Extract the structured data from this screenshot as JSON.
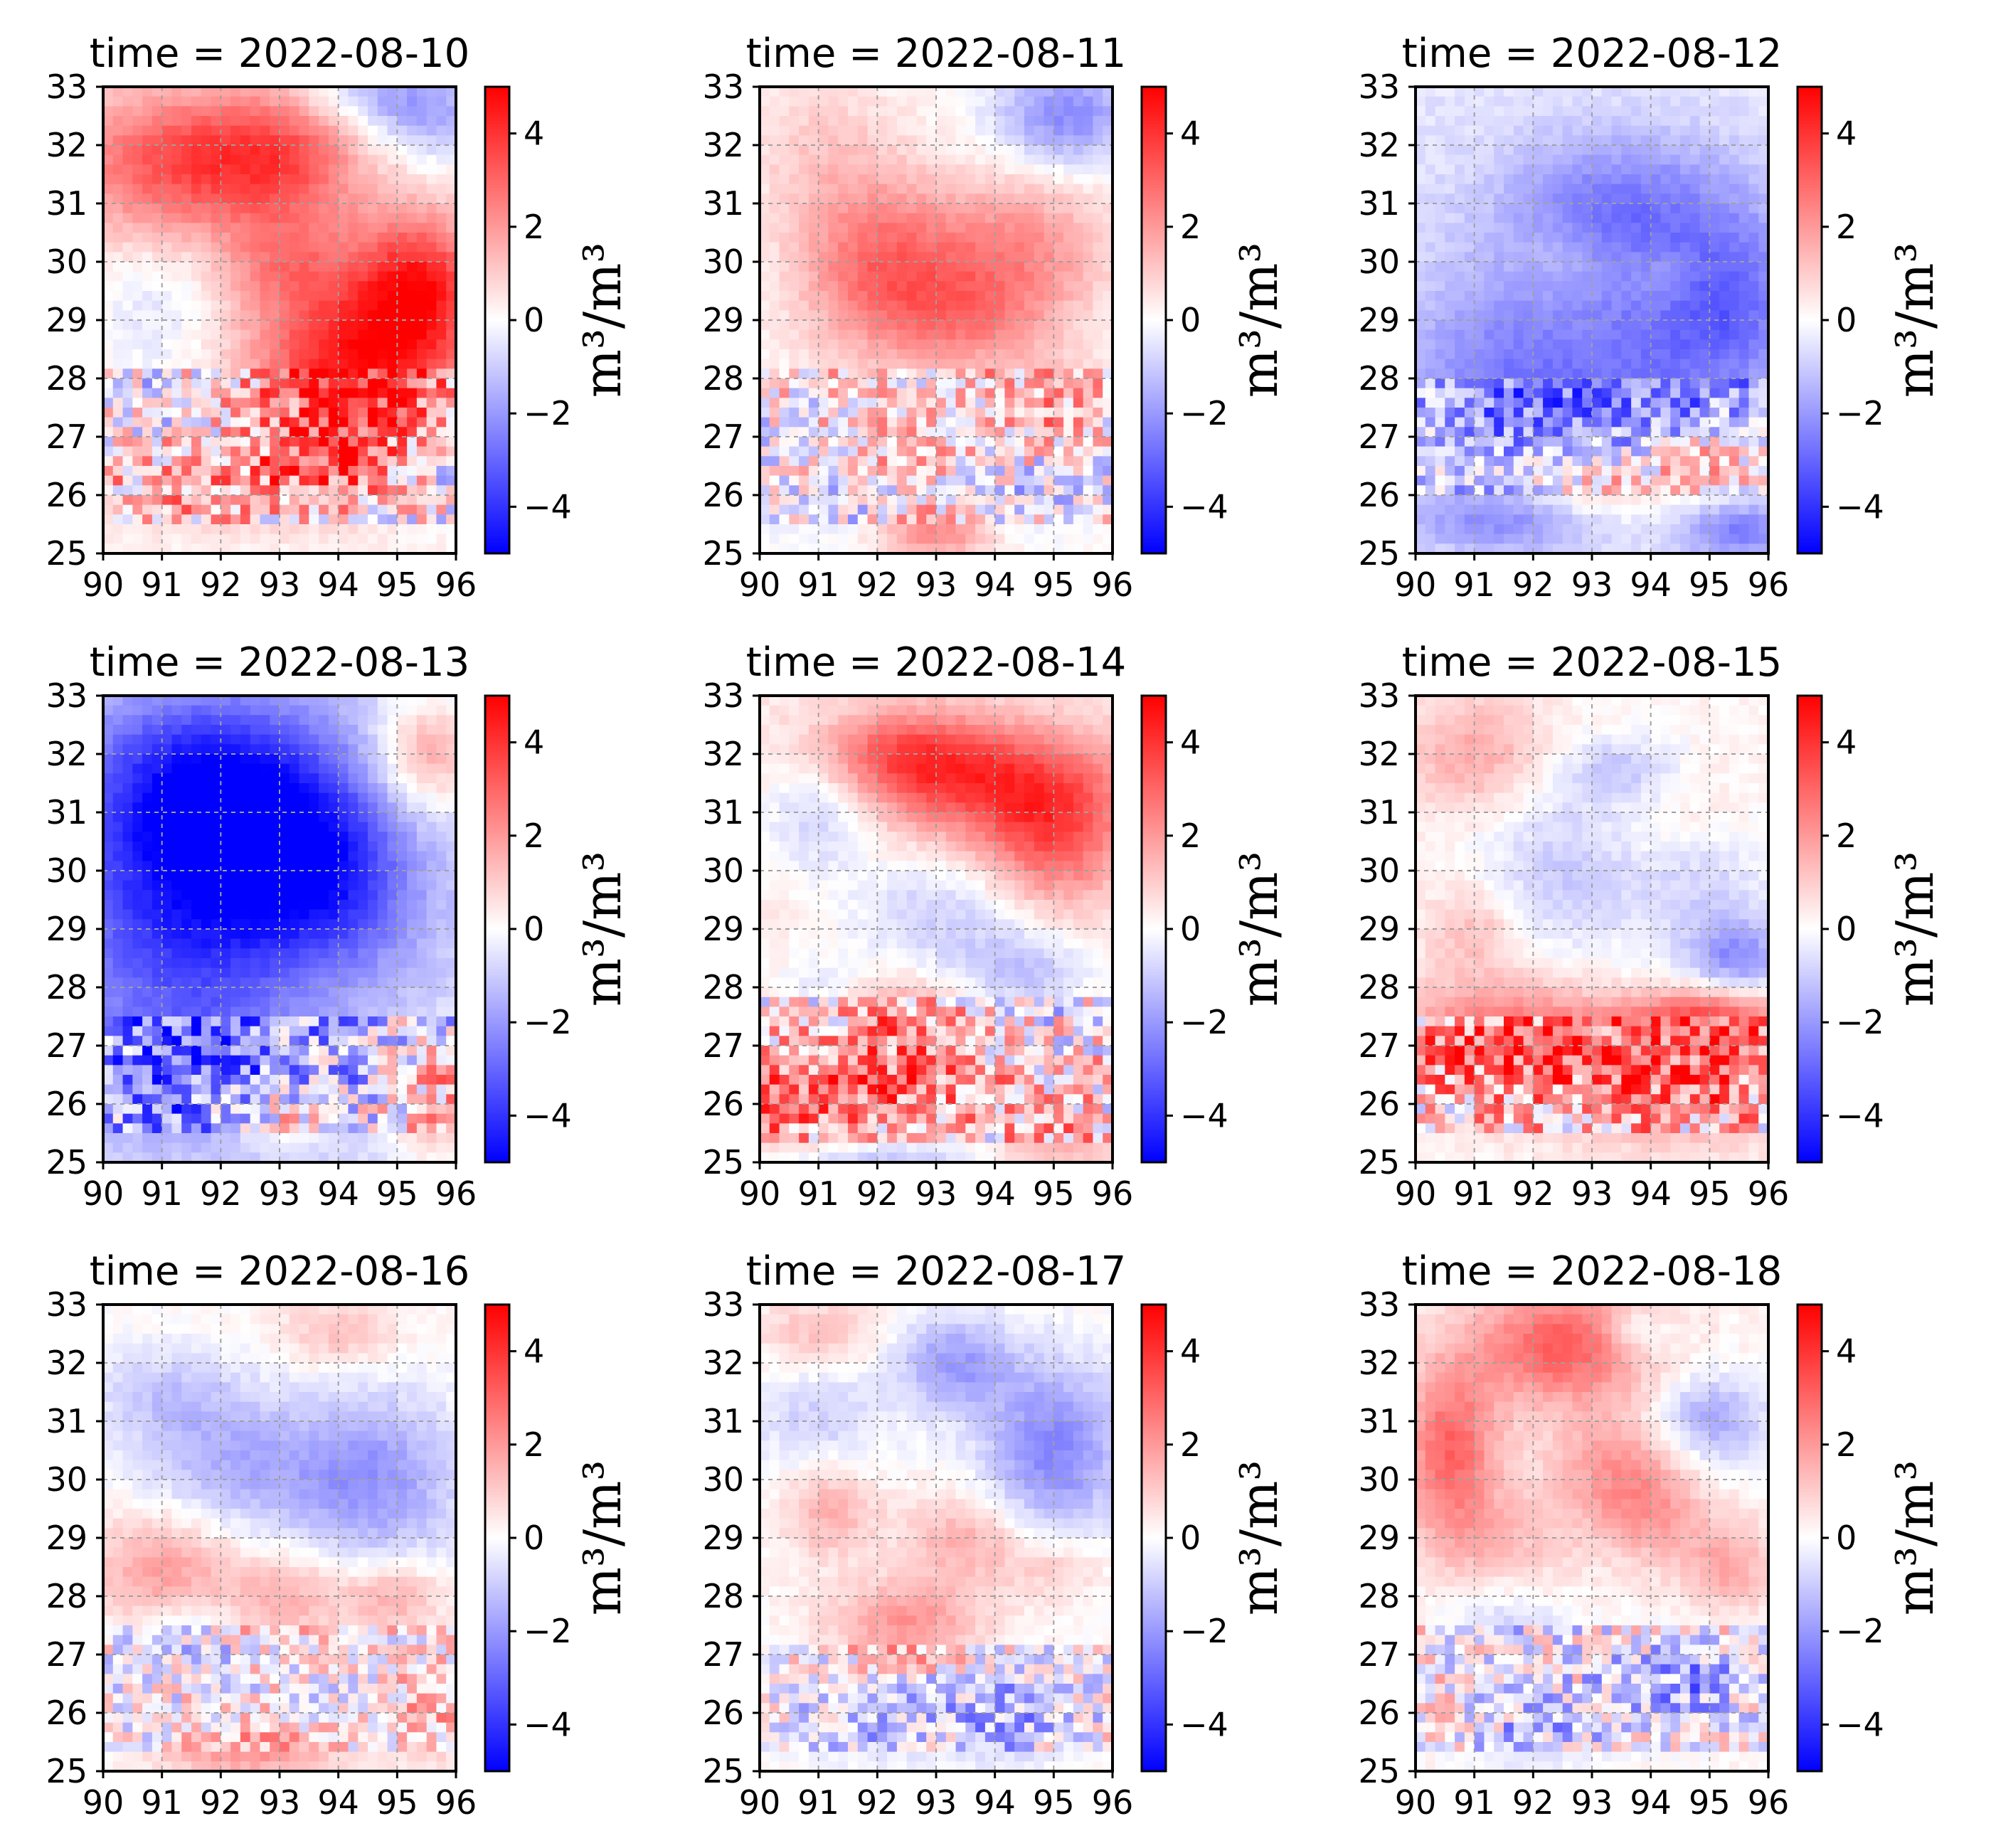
{
  "chart_data": {
    "type": "heatmap",
    "layout": "3x3 grid",
    "colormap": "bwr",
    "colorbar": {
      "range": [
        -5,
        5
      ],
      "ticks": [
        4,
        2,
        0,
        -2,
        -4
      ],
      "tick_labels": [
        "4",
        "2",
        "0",
        "−2",
        "−4"
      ],
      "label": "m³/m³"
    },
    "x_ticks": [
      90,
      91,
      92,
      93,
      94,
      95,
      96
    ],
    "y_ticks": [
      33,
      32,
      31,
      30,
      29,
      28,
      27,
      26,
      25
    ],
    "xlim": [
      90,
      96
    ],
    "ylim": [
      25,
      33
    ],
    "grid": true,
    "panels": [
      {
        "title": "time = 2022-08-10",
        "features": [
          [
            91,
            31.7,
            2.8,
            1.8,
            1.3
          ],
          [
            93,
            31.8,
            2.9,
            1.5,
            1.2
          ],
          [
            94.5,
            29,
            2.6,
            2.0,
            1.6
          ],
          [
            95.4,
            29.6,
            2.8,
            1.0,
            1.2
          ],
          [
            94.2,
            28,
            2.4,
            1.6,
            1.2
          ],
          [
            95.5,
            32.5,
            -1.8,
            1.2,
            0.8
          ],
          [
            94.5,
            32.9,
            -1.2,
            1.3,
            0.5
          ],
          [
            91,
            29.3,
            -0.8,
            1.0,
            1.0
          ],
          [
            92,
            26.2,
            1.5,
            2.5,
            0.7
          ],
          [
            94,
            26.7,
            2.2,
            1.5,
            0.8
          ],
          [
            95.5,
            26.4,
            -1.0,
            0.8,
            0.8
          ],
          [
            91,
            27.7,
            -0.4,
            1.2,
            0.8
          ],
          [
            93,
            30,
            1.2,
            1.0,
            0.8
          ]
        ],
        "base": 0.2,
        "speckle": [
          25.5,
          28.2,
          2.4
        ]
      },
      {
        "title": "time = 2022-08-11",
        "features": [
          [
            95.2,
            32.5,
            -2.4,
            1.2,
            0.9
          ],
          [
            92,
            30,
            2.6,
            1.4,
            1.5
          ],
          [
            94.5,
            30.3,
            1.8,
            1.5,
            1.3
          ],
          [
            93.5,
            29,
            2.0,
            1.5,
            1.2
          ],
          [
            91,
            32,
            0.8,
            1.3,
            1.2
          ],
          [
            93.5,
            28,
            -0.5,
            1.2,
            0.6
          ],
          [
            93,
            25.4,
            2.5,
            1.0,
            0.5
          ],
          [
            91.5,
            26,
            -0.8,
            1.8,
            0.7
          ],
          [
            94.5,
            26,
            -0.8,
            1.2,
            0.7
          ],
          [
            95,
            27.5,
            1.5,
            1.2,
            0.7
          ],
          [
            92.5,
            26.7,
            1.3,
            1.5,
            0.5
          ]
        ],
        "base": 0.1,
        "speckle": [
          25.5,
          28.2,
          2.0
        ]
      },
      {
        "title": "time = 2022-08-12",
        "features": [
          [
            93.5,
            31,
            -2.0,
            2.0,
            1.2
          ],
          [
            94.5,
            29,
            -2.0,
            1.8,
            1.5
          ],
          [
            91.5,
            28.5,
            -1.6,
            1.8,
            1.6
          ],
          [
            95.5,
            29.5,
            -1.2,
            1.0,
            1.5
          ],
          [
            93,
            27.3,
            -1.5,
            2.5,
            1.0
          ],
          [
            92.5,
            30,
            0.5,
            0.8,
            0.6
          ],
          [
            94.2,
            29.7,
            0.8,
            0.7,
            0.5
          ],
          [
            93,
            26.2,
            2.0,
            1.5,
            0.6
          ],
          [
            95,
            26.6,
            2.2,
            1.0,
            0.6
          ],
          [
            91.5,
            25.6,
            -1.8,
            1.6,
            0.6
          ],
          [
            95.5,
            25.4,
            -2.0,
            1.0,
            0.5
          ]
        ],
        "base": -0.5,
        "speckle": [
          26.0,
          28.0,
          1.8
        ]
      },
      {
        "title": "time = 2022-08-13",
        "features": [
          [
            91.5,
            29.5,
            -3.5,
            2.2,
            2.5
          ],
          [
            92,
            31.5,
            -3.0,
            2.2,
            1.5
          ],
          [
            93.5,
            30,
            -2.5,
            1.5,
            1.5
          ],
          [
            95.5,
            32,
            2.5,
            0.9,
            1.0
          ],
          [
            95.6,
            26,
            2.5,
            0.8,
            1.0
          ],
          [
            94.5,
            29.5,
            -0.8,
            1.2,
            1.5
          ],
          [
            91.5,
            26.5,
            -1.5,
            2.0,
            1.0
          ],
          [
            93,
            25.8,
            1.8,
            0.8,
            0.5
          ]
        ],
        "base": -0.8,
        "speckle": [
          25.5,
          27.5,
          2.5
        ]
      },
      {
        "title": "time = 2022-08-14",
        "features": [
          [
            94,
            31.5,
            2.8,
            2.2,
            1.0
          ],
          [
            95,
            30.5,
            2.5,
            1.2,
            1.2
          ],
          [
            92.5,
            32,
            2.3,
            1.5,
            0.8
          ],
          [
            91,
            31,
            -1.5,
            1.0,
            1.0
          ],
          [
            93,
            29.3,
            -1.3,
            1.5,
            1.0
          ],
          [
            94.5,
            28.3,
            -1.5,
            1.2,
            0.8
          ],
          [
            91,
            26.2,
            3.0,
            1.6,
            0.9
          ],
          [
            93,
            26.5,
            1.5,
            1.2,
            0.7
          ],
          [
            91,
            28,
            -0.8,
            0.8,
            0.6
          ],
          [
            92.5,
            27.5,
            1.8,
            1.0,
            0.6
          ],
          [
            95,
            25.5,
            1.5,
            1.0,
            0.6
          ],
          [
            92,
            25.1,
            -1.8,
            1.8,
            0.3
          ]
        ],
        "base": 0.4,
        "speckle": [
          25.4,
          27.8,
          2.4
        ]
      },
      {
        "title": "time = 2022-08-15",
        "features": [
          [
            91.5,
            27,
            3.0,
            2.0,
            1.0
          ],
          [
            94.5,
            26.5,
            3.0,
            2.0,
            1.0
          ],
          [
            95,
            27.5,
            2.5,
            1.2,
            0.5
          ],
          [
            92.5,
            30,
            -1.2,
            1.5,
            1.5
          ],
          [
            95,
            29.5,
            -1.0,
            1.2,
            1.5
          ],
          [
            91,
            32,
            1.5,
            1.2,
            1.0
          ],
          [
            95.5,
            28.5,
            -2.0,
            0.8,
            0.6
          ],
          [
            93.5,
            31.7,
            -1.2,
            1.0,
            0.6
          ],
          [
            91,
            29,
            1.2,
            0.8,
            0.8
          ],
          [
            94.5,
            31,
            0.5,
            1.2,
            0.8
          ]
        ],
        "base": 0.2,
        "speckle": [
          25.5,
          27.5,
          2.6
        ]
      },
      {
        "title": "time = 2022-08-16",
        "features": [
          [
            94.5,
            30,
            -2.2,
            1.6,
            1.5
          ],
          [
            92,
            30.3,
            -1.5,
            1.5,
            1.2
          ],
          [
            91,
            31.5,
            -1.0,
            1.3,
            0.8
          ],
          [
            91,
            28.5,
            1.8,
            1.2,
            1.0
          ],
          [
            93.2,
            28,
            1.5,
            1.2,
            0.8
          ],
          [
            92.5,
            25.3,
            2.0,
            1.5,
            0.4
          ],
          [
            95.5,
            26,
            1.5,
            0.8,
            0.8
          ],
          [
            91.5,
            27.3,
            -1.3,
            0.8,
            0.6
          ],
          [
            94,
            32.5,
            1.2,
            1.0,
            0.6
          ],
          [
            95,
            28,
            1.5,
            0.8,
            0.6
          ]
        ],
        "base": 0.1,
        "speckle": [
          25.4,
          27.5,
          1.8
        ]
      },
      {
        "title": "time = 2022-08-17",
        "features": [
          [
            95,
            30.5,
            -2.5,
            1.2,
            1.5
          ],
          [
            93.3,
            32,
            -2.0,
            1.0,
            0.8
          ],
          [
            91,
            31,
            -1.0,
            1.2,
            1.0
          ],
          [
            92.5,
            27.5,
            2.0,
            1.3,
            0.8
          ],
          [
            91,
            32.5,
            1.2,
            1.0,
            0.6
          ],
          [
            93.5,
            29,
            1.5,
            1.0,
            0.8
          ],
          [
            92,
            26,
            -1.2,
            1.5,
            0.8
          ],
          [
            94.3,
            26,
            -1.5,
            1.2,
            0.8
          ],
          [
            91.2,
            29.5,
            1.5,
            0.8,
            0.8
          ],
          [
            95,
            28.5,
            1.0,
            0.9,
            0.6
          ]
        ],
        "base": 0.1,
        "speckle": [
          25.4,
          27.2,
          1.8
        ]
      },
      {
        "title": "time = 2022-08-18",
        "features": [
          [
            92.5,
            32.3,
            3.0,
            1.5,
            1.0
          ],
          [
            90.6,
            30.5,
            2.8,
            0.8,
            1.5
          ],
          [
            95,
            31,
            -2.0,
            1.0,
            0.8
          ],
          [
            93.5,
            30.2,
            1.8,
            1.2,
            1.0
          ],
          [
            91.5,
            29,
            1.0,
            1.2,
            0.8
          ],
          [
            94.5,
            26.5,
            -2.0,
            1.5,
            0.8
          ],
          [
            92,
            25.7,
            -1.5,
            1.2,
            0.6
          ],
          [
            95.3,
            28.5,
            1.5,
            0.8,
            0.8
          ],
          [
            91.5,
            27.5,
            -1.0,
            1.0,
            0.6
          ],
          [
            93.8,
            32.5,
            -1.2,
            0.6,
            0.4
          ],
          [
            94,
            29.3,
            1.2,
            0.9,
            0.8
          ]
        ],
        "base": 0.2,
        "speckle": [
          25.4,
          27.5,
          2.0
        ]
      }
    ]
  }
}
